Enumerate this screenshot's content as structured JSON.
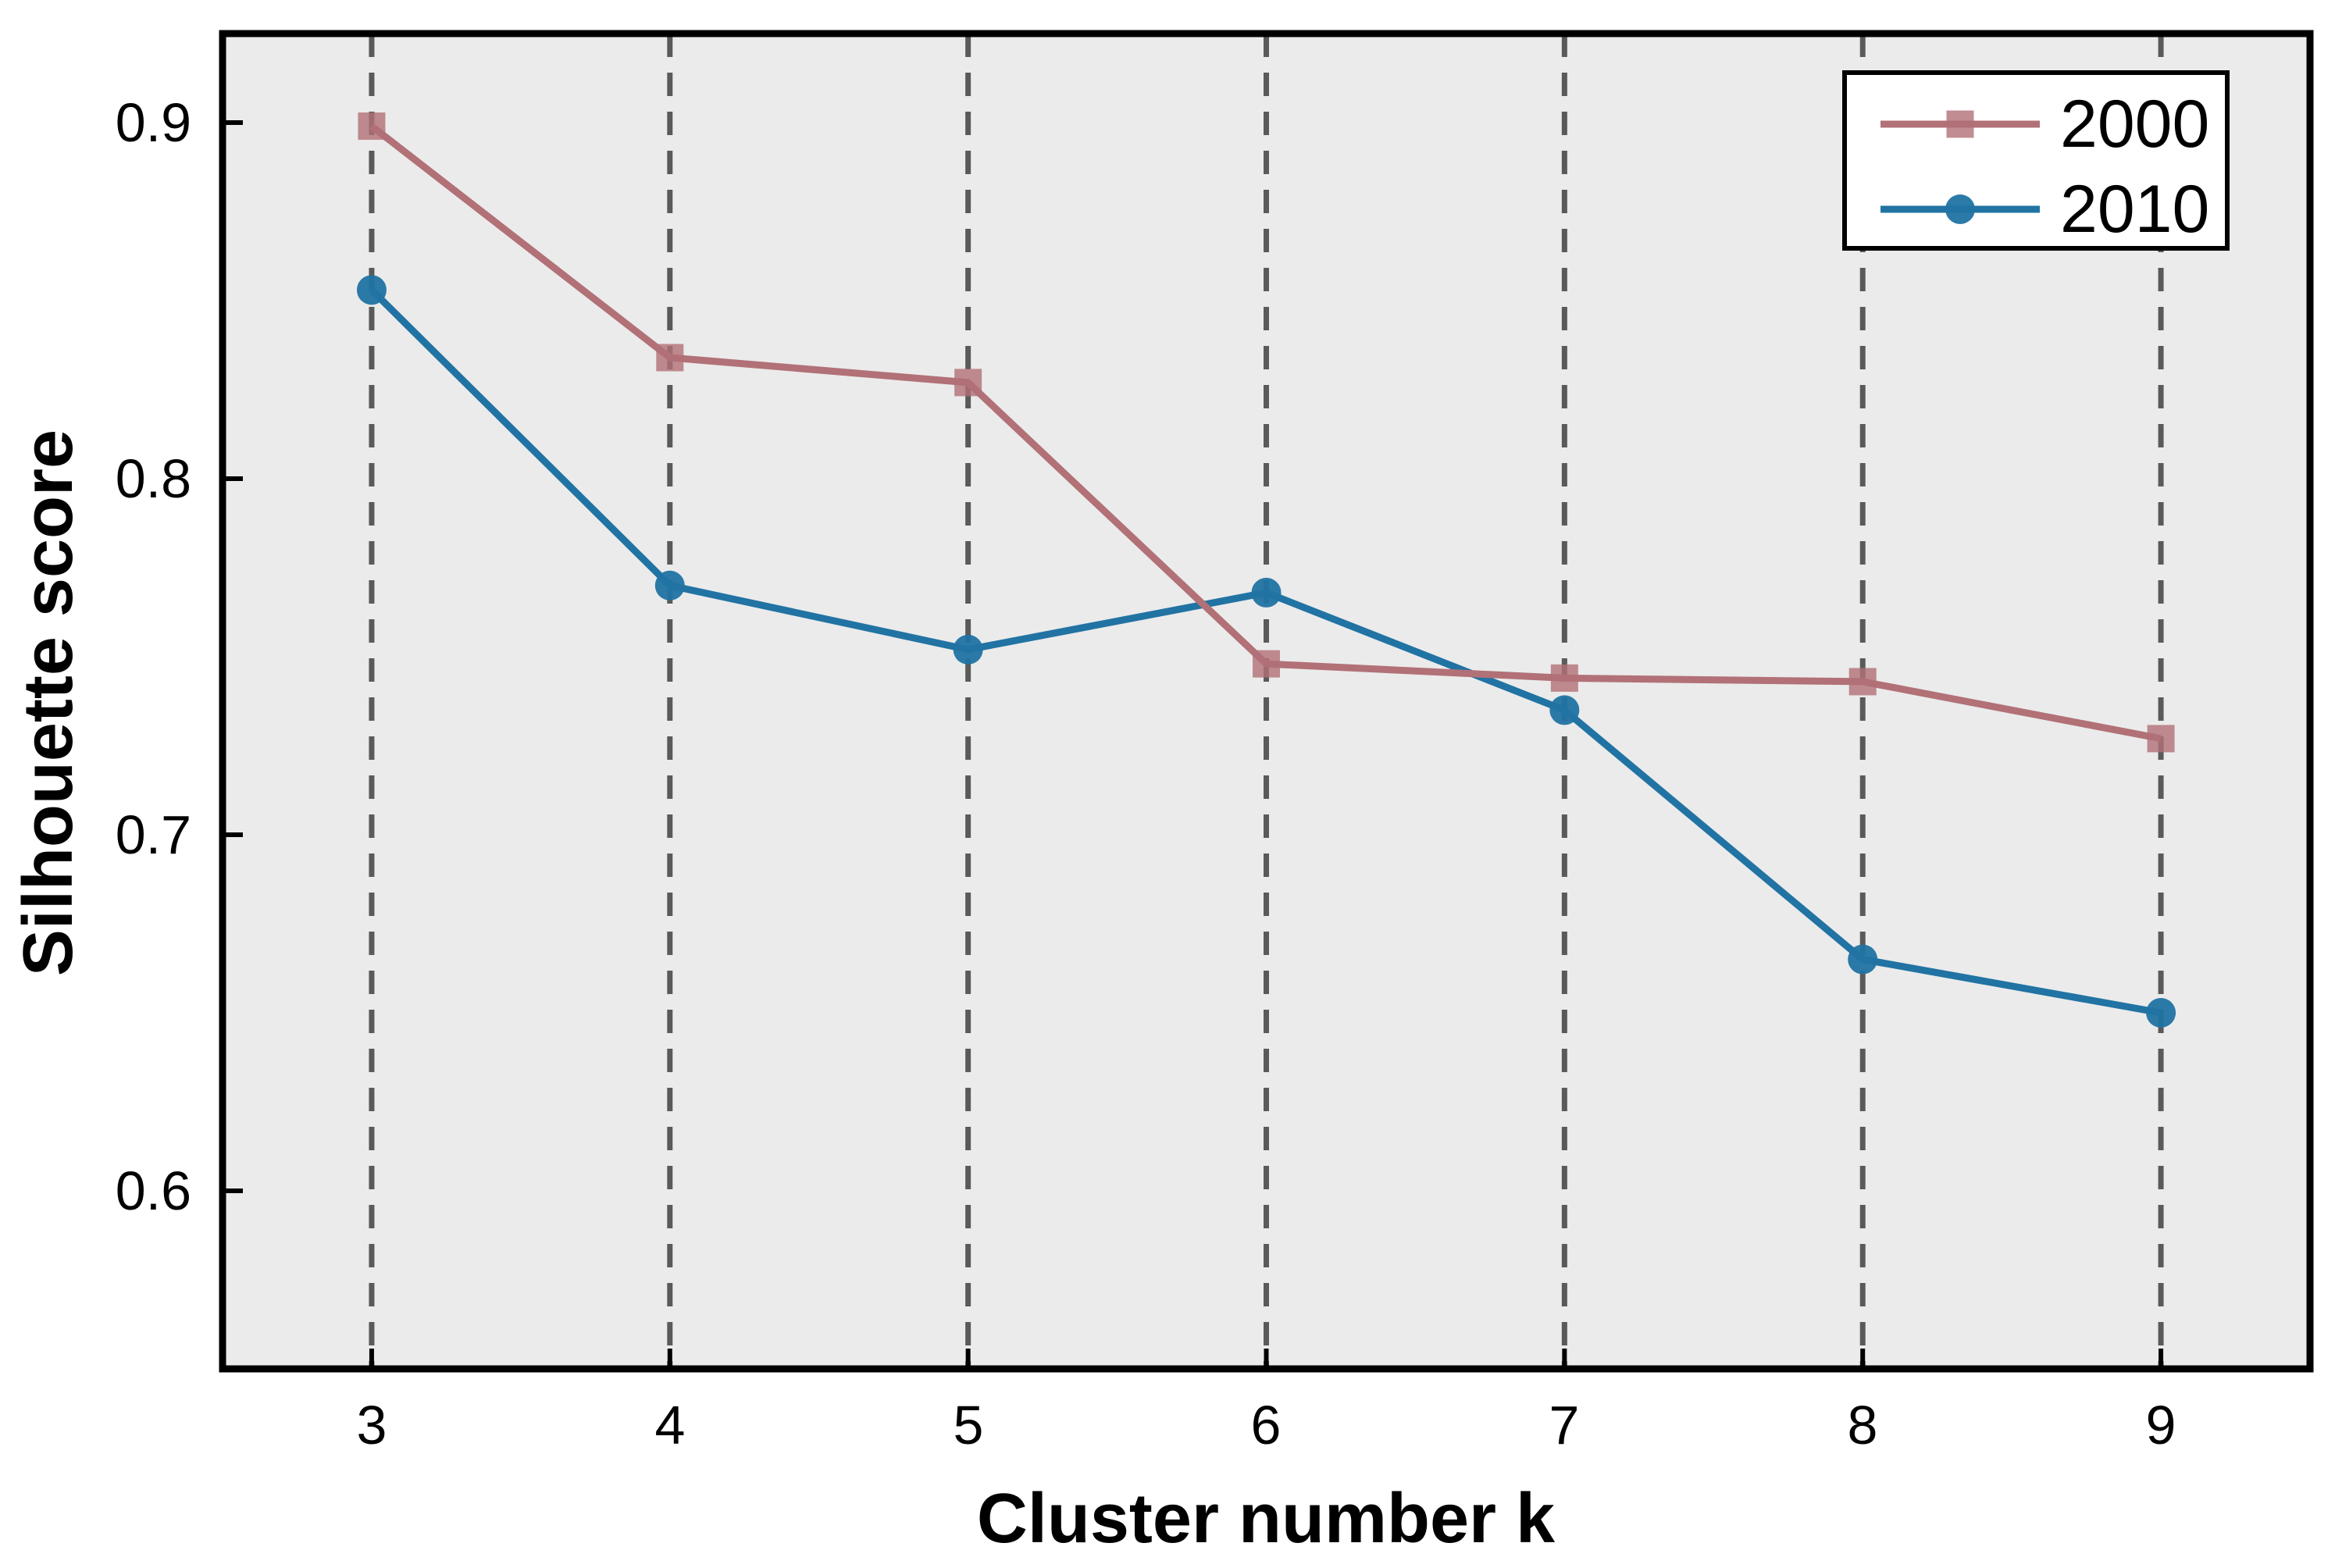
{
  "chart_data": {
    "type": "line",
    "title": "",
    "xlabel": "Cluster number k",
    "ylabel": "Silhouette score",
    "x": [
      3,
      4,
      5,
      6,
      7,
      8,
      9
    ],
    "xticklabels": [
      "3",
      "4",
      "5",
      "6",
      "7",
      "8",
      "9"
    ],
    "yticks": [
      0.9,
      0.8,
      0.7,
      0.6
    ],
    "yticklabels": [
      "0.9",
      "0.8",
      "0.7",
      "0.6"
    ],
    "xlim": [
      2.5,
      9.5
    ],
    "ylim": [
      0.55,
      0.925
    ],
    "grid": "vertical-dashed",
    "legend_position": "top-right",
    "series": [
      {
        "name": "2000",
        "marker": "square",
        "color": "#b17177",
        "values": [
          0.899,
          0.834,
          0.827,
          0.748,
          0.744,
          0.743,
          0.727
        ]
      },
      {
        "name": "2010",
        "marker": "circle",
        "color": "#2173a3",
        "values": [
          0.853,
          0.77,
          0.752,
          0.768,
          0.735,
          0.665,
          0.65
        ]
      }
    ],
    "colors": {
      "plot_background": "#ebebeb",
      "outer_background": "#ffffff",
      "grid": "#5a5a5a",
      "frame": "#000000",
      "legend_background": "#ffffff",
      "text": "#000000"
    }
  }
}
